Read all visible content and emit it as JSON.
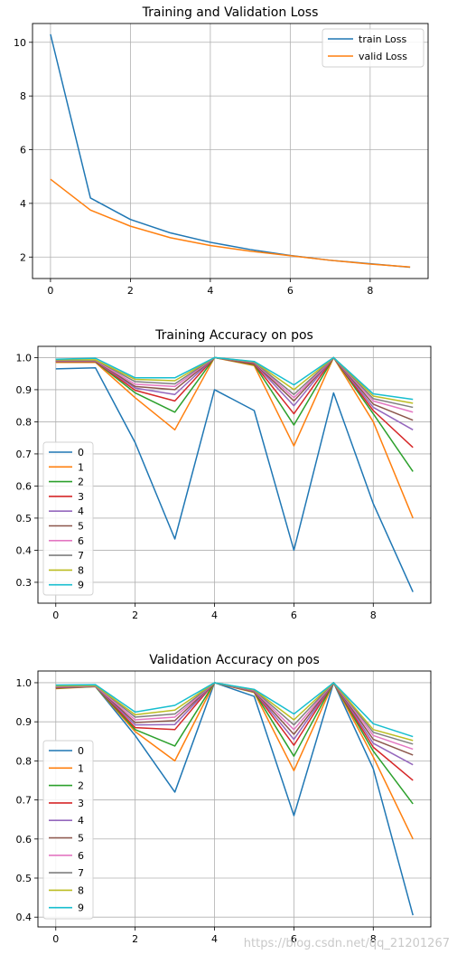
{
  "chart_data": [
    {
      "type": "line",
      "title": "Training and Validation Loss",
      "xlabel": "",
      "ylabel": "",
      "x": [
        0,
        1,
        2,
        3,
        4,
        5,
        6,
        7,
        8,
        9
      ],
      "xticks": [
        "0",
        "2",
        "4",
        "6",
        "8"
      ],
      "yticks": [
        "2",
        "4",
        "6",
        "8",
        "10"
      ],
      "xlim": [
        -0.45,
        9.45
      ],
      "ylim": [
        1.2,
        10.7
      ],
      "grid": true,
      "legend": "top-right",
      "series": [
        {
          "name": "train Loss",
          "color": "#1f77b4",
          "values": [
            10.3,
            4.2,
            3.4,
            2.9,
            2.55,
            2.28,
            2.06,
            1.88,
            1.75,
            1.62
          ]
        },
        {
          "name": "valid Loss",
          "color": "#ff7f0e",
          "values": [
            4.9,
            3.75,
            3.15,
            2.72,
            2.43,
            2.22,
            2.05,
            1.88,
            1.74,
            1.63
          ]
        }
      ]
    },
    {
      "type": "line",
      "title": "Training Accuracy on pos",
      "xlabel": "",
      "ylabel": "",
      "x": [
        0,
        1,
        2,
        3,
        4,
        5,
        6,
        7,
        8,
        9
      ],
      "xticks": [
        "0",
        "2",
        "4",
        "6",
        "8"
      ],
      "yticks": [
        "0.3",
        "0.4",
        "0.5",
        "0.6",
        "0.7",
        "0.8",
        "0.9",
        "1.0"
      ],
      "xlim": [
        -0.45,
        9.45
      ],
      "ylim": [
        0.235,
        1.035
      ],
      "grid": true,
      "legend": "lower-left",
      "series": [
        {
          "name": "0",
          "color": "#1f77b4",
          "values": [
            0.965,
            0.968,
            0.735,
            0.435,
            0.9,
            0.835,
            0.4,
            0.89,
            0.545,
            0.27
          ]
        },
        {
          "name": "1",
          "color": "#ff7f0e",
          "values": [
            0.985,
            0.985,
            0.875,
            0.775,
            1.0,
            0.975,
            0.725,
            1.0,
            0.8,
            0.5
          ]
        },
        {
          "name": "2",
          "color": "#2ca02c",
          "values": [
            0.987,
            0.987,
            0.89,
            0.83,
            1.0,
            0.978,
            0.79,
            1.0,
            0.825,
            0.645
          ]
        },
        {
          "name": "3",
          "color": "#d62728",
          "values": [
            0.988,
            0.988,
            0.898,
            0.865,
            1.0,
            0.98,
            0.825,
            1.0,
            0.835,
            0.72
          ]
        },
        {
          "name": "4",
          "color": "#9467bd",
          "values": [
            0.989,
            0.989,
            0.905,
            0.885,
            1.0,
            0.982,
            0.85,
            1.0,
            0.845,
            0.775
          ]
        },
        {
          "name": "5",
          "color": "#8c564b",
          "values": [
            0.99,
            0.99,
            0.91,
            0.9,
            1.0,
            0.983,
            0.865,
            1.0,
            0.855,
            0.805
          ]
        },
        {
          "name": "6",
          "color": "#e377c2",
          "values": [
            0.991,
            0.991,
            0.917,
            0.91,
            1.0,
            0.985,
            0.875,
            1.0,
            0.865,
            0.83
          ]
        },
        {
          "name": "7",
          "color": "#7f7f7f",
          "values": [
            0.992,
            0.992,
            0.925,
            0.918,
            1.0,
            0.986,
            0.885,
            1.0,
            0.872,
            0.845
          ]
        },
        {
          "name": "8",
          "color": "#bcbd22",
          "values": [
            0.993,
            0.993,
            0.932,
            0.928,
            1.0,
            0.987,
            0.9,
            1.0,
            0.88,
            0.858
          ]
        },
        {
          "name": "9",
          "color": "#17becf",
          "values": [
            0.995,
            0.998,
            0.937,
            0.937,
            1.0,
            0.988,
            0.915,
            1.0,
            0.887,
            0.87
          ]
        }
      ]
    },
    {
      "type": "line",
      "title": "Validation Accuracy on pos",
      "xlabel": "",
      "ylabel": "",
      "x": [
        0,
        1,
        2,
        3,
        4,
        5,
        6,
        7,
        8,
        9
      ],
      "xticks": [
        "0",
        "2",
        "4",
        "6",
        "8"
      ],
      "yticks": [
        "0.4",
        "0.5",
        "0.6",
        "0.7",
        "0.8",
        "0.9",
        "1.0"
      ],
      "xlim": [
        -0.45,
        9.45
      ],
      "ylim": [
        0.375,
        1.03
      ],
      "grid": true,
      "legend": "lower-left",
      "series": [
        {
          "name": "0",
          "color": "#1f77b4",
          "values": [
            0.99,
            0.99,
            0.865,
            0.72,
            1.0,
            0.965,
            0.66,
            1.0,
            0.78,
            0.405
          ]
        },
        {
          "name": "1",
          "color": "#ff7f0e",
          "values": [
            0.985,
            0.99,
            0.875,
            0.8,
            1.0,
            0.975,
            0.775,
            1.0,
            0.81,
            0.6
          ]
        },
        {
          "name": "2",
          "color": "#2ca02c",
          "values": [
            0.986,
            0.99,
            0.88,
            0.838,
            1.0,
            0.976,
            0.812,
            1.0,
            0.825,
            0.69
          ]
        },
        {
          "name": "3",
          "color": "#d62728",
          "values": [
            0.987,
            0.991,
            0.885,
            0.88,
            1.0,
            0.977,
            0.84,
            1.0,
            0.835,
            0.75
          ]
        },
        {
          "name": "4",
          "color": "#9467bd",
          "values": [
            0.988,
            0.991,
            0.892,
            0.893,
            1.0,
            0.978,
            0.855,
            1.0,
            0.845,
            0.79
          ]
        },
        {
          "name": "5",
          "color": "#8c564b",
          "values": [
            0.989,
            0.992,
            0.898,
            0.903,
            1.0,
            0.979,
            0.868,
            1.0,
            0.855,
            0.815
          ]
        },
        {
          "name": "6",
          "color": "#e377c2",
          "values": [
            0.99,
            0.992,
            0.905,
            0.912,
            1.0,
            0.98,
            0.88,
            1.0,
            0.865,
            0.83
          ]
        },
        {
          "name": "7",
          "color": "#7f7f7f",
          "values": [
            0.991,
            0.993,
            0.912,
            0.92,
            1.0,
            0.981,
            0.892,
            1.0,
            0.873,
            0.843
          ]
        },
        {
          "name": "8",
          "color": "#bcbd22",
          "values": [
            0.992,
            0.993,
            0.918,
            0.93,
            1.0,
            0.982,
            0.905,
            1.0,
            0.88,
            0.852
          ]
        },
        {
          "name": "9",
          "color": "#17becf",
          "values": [
            0.994,
            0.995,
            0.925,
            0.942,
            1.0,
            0.983,
            0.92,
            1.0,
            0.895,
            0.862
          ]
        }
      ]
    }
  ],
  "watermark": "https://blog.csdn.net/qq_21201267"
}
